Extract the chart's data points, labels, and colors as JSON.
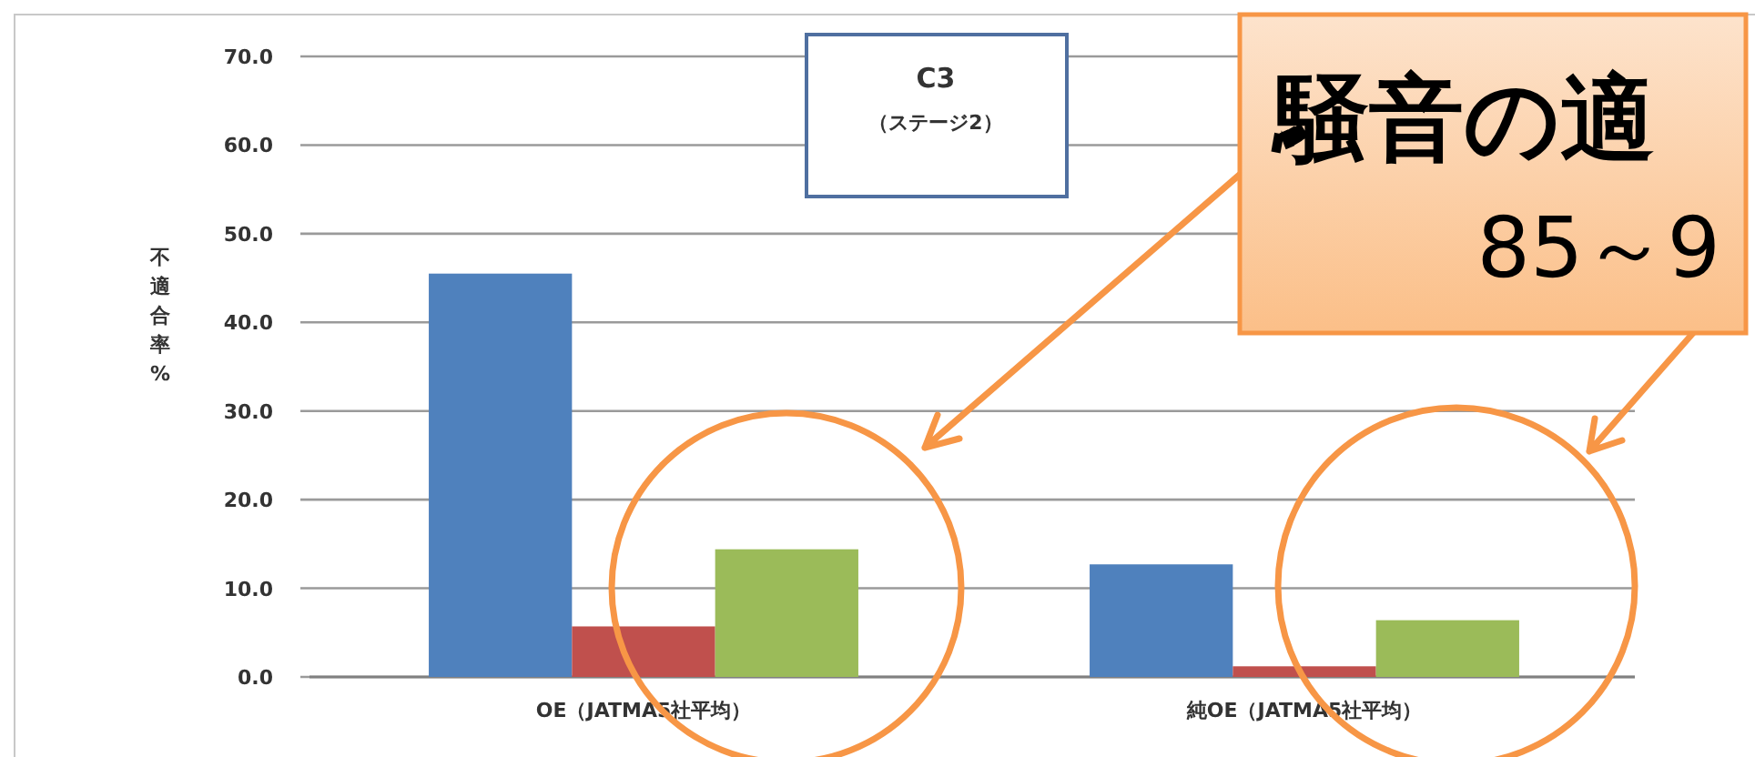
{
  "chart_data": {
    "type": "bar",
    "ylabel": "不適合率%",
    "categories": [
      "OE（JATMA5社平均）",
      "純OE（JATMA5社平均）"
    ],
    "series": [
      {
        "color": "#4f81bd",
        "values": [
          45.5,
          12.7
        ]
      },
      {
        "color": "#c0504d",
        "values": [
          5.7,
          1.2
        ]
      },
      {
        "color": "#9bbb59",
        "values": [
          14.4,
          6.4
        ]
      }
    ],
    "ylim": [
      0,
      70
    ],
    "yticks": [
      {
        "value": 0,
        "label": "0.0"
      },
      {
        "value": 10,
        "label": "10.0"
      },
      {
        "value": 20,
        "label": "20.0"
      },
      {
        "value": 30,
        "label": "30.0"
      },
      {
        "value": 40,
        "label": "40.0"
      },
      {
        "value": 50,
        "label": "50.0"
      },
      {
        "value": 60,
        "label": "60.0"
      },
      {
        "value": 70,
        "label": "70.0"
      }
    ],
    "grid": "y",
    "annotations": [
      "C3",
      "（ステージ2）",
      "騒音の適",
      "85～9"
    ]
  }
}
